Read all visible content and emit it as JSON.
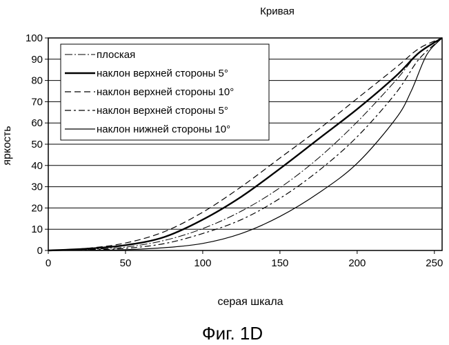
{
  "chart_data": {
    "type": "line",
    "title": "Кривая",
    "xlabel": "серая шкала",
    "ylabel": "яркость",
    "xlim": [
      0,
      255
    ],
    "ylim": [
      0,
      100
    ],
    "xticks": [
      0,
      50,
      100,
      150,
      200,
      250
    ],
    "yticks": [
      0,
      10,
      20,
      30,
      40,
      50,
      60,
      70,
      80,
      90,
      100
    ],
    "grid": "horizontal",
    "legend_position": "top-left",
    "series": [
      {
        "name": "плоская",
        "style": "dash-dot",
        "x": [
          0,
          25,
          50,
          75,
          100,
          125,
          150,
          175,
          200,
          225,
          240,
          255
        ],
        "y": [
          0,
          0.5,
          1.6,
          4.7,
          10.3,
          18.5,
          29.5,
          43.5,
          60.5,
          80,
          93,
          100
        ]
      },
      {
        "name": "наклон верхней стороны  5°",
        "style": "bold",
        "x": [
          0,
          25,
          50,
          75,
          100,
          125,
          150,
          175,
          200,
          225,
          240,
          255
        ],
        "y": [
          0,
          0.8,
          2.5,
          6.3,
          14.5,
          25.3,
          38.5,
          52.5,
          66.5,
          82,
          93,
          100
        ]
      },
      {
        "name": "наклон верхней стороны 10°",
        "style": "dashed",
        "x": [
          0,
          25,
          50,
          75,
          100,
          125,
          150,
          175,
          200,
          225,
          240,
          255
        ],
        "y": [
          0,
          1,
          3.5,
          8.8,
          18,
          30,
          43.5,
          57,
          71.5,
          86,
          95,
          100
        ]
      },
      {
        "name": "наклон верхней стороны  5°",
        "style": "dash-dot-wide",
        "x": [
          0,
          25,
          50,
          75,
          100,
          125,
          150,
          175,
          200,
          225,
          240,
          255
        ],
        "y": [
          0,
          0.3,
          1,
          3.2,
          8,
          14.5,
          24.5,
          37.5,
          53.5,
          74,
          90,
          100
        ]
      },
      {
        "name": "наклон нижней стороны  10°",
        "style": "solid",
        "x": [
          0,
          25,
          50,
          75,
          100,
          125,
          150,
          175,
          200,
          225,
          235,
          245,
          255
        ],
        "y": [
          0,
          0.1,
          0.4,
          1.3,
          3.3,
          8,
          16,
          27,
          41,
          62,
          75,
          92,
          100
        ]
      }
    ]
  },
  "figure_caption": "Фиг. 1D"
}
